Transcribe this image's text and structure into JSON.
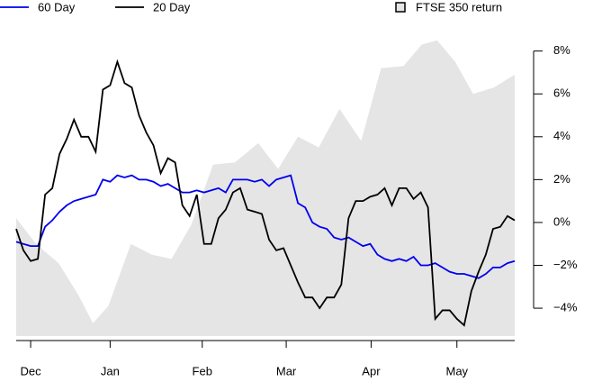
{
  "chart_data": {
    "type": "line",
    "x": [
      0,
      2,
      4,
      6,
      8,
      10,
      12,
      14,
      16,
      18,
      20,
      22,
      24,
      26,
      28,
      30,
      32,
      34,
      36,
      38,
      40,
      42,
      44,
      46,
      48,
      50,
      52,
      54,
      56,
      58,
      60,
      62,
      64,
      66,
      68,
      70,
      72,
      74,
      76,
      78,
      80,
      82,
      84,
      86,
      88,
      90,
      92,
      94,
      96,
      98,
      100,
      102,
      104,
      106,
      108,
      110,
      112,
      114,
      116,
      118,
      120,
      122,
      124,
      126,
      128,
      130,
      132,
      134,
      136,
      138
    ],
    "series": [
      {
        "name": "60 Day",
        "color": "#0000ee",
        "values": [
          -0.9,
          -1.0,
          -1.1,
          -1.1,
          -0.2,
          0.1,
          0.5,
          0.8,
          1.0,
          1.1,
          1.2,
          1.3,
          2.0,
          1.9,
          2.2,
          2.1,
          2.2,
          2.0,
          2.0,
          1.9,
          1.7,
          1.8,
          1.6,
          1.4,
          1.4,
          1.5,
          1.4,
          1.5,
          1.6,
          1.4,
          2.0,
          2.0,
          2.0,
          1.9,
          2.0,
          1.7,
          2.0,
          2.1,
          2.2,
          0.9,
          0.7,
          0.0,
          -0.2,
          -0.3,
          -0.7,
          -0.8,
          -0.7,
          -0.9,
          -1.1,
          -1.0,
          -1.5,
          -1.7,
          -1.8,
          -1.7,
          -1.8,
          -1.6,
          -2.0,
          -2.0,
          -1.9,
          -2.1,
          -2.3,
          -2.4,
          -2.4,
          -2.5,
          -2.6,
          -2.4,
          -2.1,
          -2.1,
          -1.9,
          -1.8
        ]
      },
      {
        "name": "20 Day",
        "color": "#000000",
        "values": [
          -0.3,
          -1.3,
          -1.8,
          -1.7,
          1.3,
          1.6,
          3.2,
          3.9,
          4.8,
          4.0,
          4.0,
          3.3,
          6.2,
          6.4,
          7.5,
          6.5,
          6.3,
          5.0,
          4.2,
          3.6,
          2.3,
          3.0,
          2.8,
          0.8,
          0.3,
          1.3,
          -1.0,
          -1.0,
          0.2,
          0.6,
          1.4,
          1.6,
          0.6,
          0.5,
          0.4,
          -0.8,
          -1.3,
          -1.2,
          -2.0,
          -2.8,
          -3.5,
          -3.5,
          -4.0,
          -3.5,
          -3.5,
          -2.9,
          0.2,
          1.0,
          1.0,
          1.2,
          1.3,
          1.6,
          0.8,
          1.6,
          1.6,
          1.1,
          1.4,
          0.7,
          -4.5,
          -4.1,
          -4.1,
          -4.5,
          -4.8,
          -3.2,
          -2.3,
          -1.5,
          -0.3,
          -0.2,
          0.3,
          0.1
        ]
      },
      {
        "name": "FTSE 350 return",
        "type": "area",
        "color": "#e5e5e5",
        "x": [
          0,
          5.5,
          11.75,
          17.25,
          21.25,
          25.5,
          31.75,
          37.5,
          43,
          48.5,
          54.5,
          60.5,
          67,
          72.5,
          78,
          83.75,
          89.5,
          95.5,
          101,
          107.25,
          112.25,
          116.5,
          121.5,
          126.5,
          132.25,
          138
        ],
        "values": [
          0.2,
          -1.0,
          -1.9,
          -3.4,
          -4.7,
          -3.9,
          -1.0,
          -1.5,
          -1.7,
          -0.1,
          2.7,
          2.8,
          3.7,
          2.5,
          4.0,
          3.5,
          5.3,
          3.8,
          7.2,
          7.3,
          8.3,
          8.5,
          7.5,
          6.0,
          6.3,
          6.9
        ]
      }
    ],
    "xlim": [
      0,
      138
    ],
    "xticks": [
      {
        "value": 4,
        "label": "Dec"
      },
      {
        "value": 26,
        "label": "Jan"
      },
      {
        "value": 51.5,
        "label": "Feb"
      },
      {
        "value": 74.75,
        "label": "Mar"
      },
      {
        "value": 98.25,
        "label": "Apr"
      },
      {
        "value": 122,
        "label": "May"
      }
    ],
    "ylim": [
      -5.3,
      8.7
    ],
    "yticks": [
      {
        "value": -4,
        "label": "−4%"
      },
      {
        "value": -2,
        "label": "−2%"
      },
      {
        "value": 0,
        "label": "0%"
      },
      {
        "value": 2,
        "label": "2%"
      },
      {
        "value": 4,
        "label": "4%"
      },
      {
        "value": 6,
        "label": "6%"
      },
      {
        "value": 8,
        "label": "8%"
      }
    ],
    "y_axis_side": "right"
  }
}
